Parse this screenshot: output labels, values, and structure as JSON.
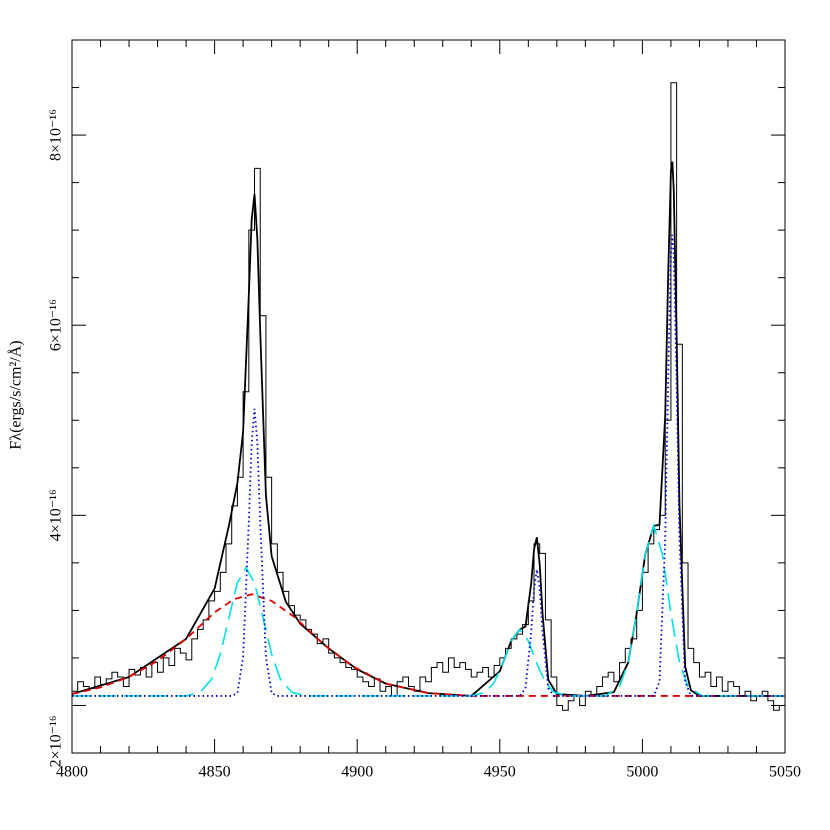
{
  "chart_data": {
    "type": "line",
    "ylabel": "Fλ(ergs/s/cm²/Å)",
    "xlim": [
      4800,
      5050
    ],
    "xticks": [
      4800,
      4850,
      4900,
      4950,
      5000,
      5050
    ],
    "xminorticks": [
      4810,
      4820,
      4830,
      4840,
      4860,
      4870,
      4880,
      4890,
      4910,
      4920,
      4930,
      4940,
      4960,
      4970,
      4980,
      4990,
      5010,
      5020,
      5030,
      5040
    ],
    "ylim": [
      1.5e-16,
      9e-16
    ],
    "yticks": [
      {
        "value": 2e-16,
        "label": "2×10⁻¹⁶"
      },
      {
        "value": 4e-16,
        "label": "4×10⁻¹⁶"
      },
      {
        "value": 6e-16,
        "label": "6×10⁻¹⁶"
      },
      {
        "value": 8e-16,
        "label": "8×10⁻¹⁶"
      }
    ],
    "yminorticks": [
      2.5e-16,
      3e-16,
      3.5e-16,
      4.5e-16,
      5e-16,
      5.5e-16,
      6.5e-16,
      7e-16,
      7.5e-16,
      8.5e-16
    ],
    "series": [
      {
        "color": "#000000",
        "dash": "solid",
        "width": 1,
        "step": true,
        "bins": [
          4800,
          4802,
          4804,
          4806,
          4808,
          4810,
          4812,
          4814,
          4816,
          4818,
          4820,
          4822,
          4824,
          4826,
          4828,
          4830,
          4832,
          4834,
          4836,
          4838,
          4840,
          4842,
          4844,
          4846,
          4848,
          4850,
          4852,
          4854,
          4856,
          4858,
          4860,
          4862,
          4864,
          4866,
          4868,
          4870,
          4872,
          4874,
          4876,
          4878,
          4880,
          4882,
          4884,
          4886,
          4888,
          4890,
          4892,
          4894,
          4896,
          4898,
          4900,
          4902,
          4904,
          4906,
          4908,
          4910,
          4912,
          4914,
          4916,
          4918,
          4920,
          4922,
          4924,
          4926,
          4928,
          4930,
          4932,
          4934,
          4936,
          4938,
          4940,
          4942,
          4944,
          4946,
          4948,
          4950,
          4952,
          4954,
          4956,
          4958,
          4960,
          4962,
          4964,
          4966,
          4968,
          4970,
          4972,
          4974,
          4976,
          4978,
          4980,
          4982,
          4984,
          4986,
          4988,
          4990,
          4992,
          4994,
          4996,
          4998,
          5000,
          5002,
          5004,
          5006,
          5008,
          5010,
          5012,
          5014,
          5016,
          5018,
          5020,
          5022,
          5024,
          5026,
          5028,
          5030,
          5032,
          5034,
          5036,
          5038,
          5040,
          5042,
          5044,
          5046,
          5048,
          5050
        ],
        "values": [
          2.15e-16,
          2.25e-16,
          2.2e-16,
          2.18e-16,
          2.3e-16,
          2.22e-16,
          2.28e-16,
          2.35e-16,
          2.3e-16,
          2.2e-16,
          2.38e-16,
          2.32e-16,
          2.4e-16,
          2.3e-16,
          2.45e-16,
          2.35e-16,
          2.5e-16,
          2.42e-16,
          2.6e-16,
          2.55e-16,
          2.48e-16,
          2.7e-16,
          2.8e-16,
          2.9e-16,
          3.1e-16,
          3.2e-16,
          3.4e-16,
          3.7e-16,
          4.1e-16,
          4.4e-16,
          5.3e-16,
          7e-16,
          7.65e-16,
          6.1e-16,
          4.4e-16,
          3.7e-16,
          3.4e-16,
          3.2e-16,
          3.05e-16,
          2.95e-16,
          2.9e-16,
          2.8e-16,
          2.75e-16,
          2.65e-16,
          2.7e-16,
          2.55e-16,
          2.5e-16,
          2.45e-16,
          2.4e-16,
          2.38e-16,
          2.3e-16,
          2.25e-16,
          2.2e-16,
          2.28e-16,
          2.15e-16,
          2.2e-16,
          2.1e-16,
          2.25e-16,
          2.3e-16,
          2.2e-16,
          2.15e-16,
          2.3e-16,
          2.25e-16,
          2.4e-16,
          2.45e-16,
          2.35e-16,
          2.5e-16,
          2.4e-16,
          2.45e-16,
          2.38e-16,
          2.3e-16,
          2.35e-16,
          2.4e-16,
          2.3e-16,
          2.42e-16,
          2.5e-16,
          2.6e-16,
          2.7e-16,
          2.75e-16,
          2.85e-16,
          3.1e-16,
          3.7e-16,
          3.6e-16,
          2.9e-16,
          2.3e-16,
          2e-16,
          1.95e-16,
          2.05e-16,
          2.1e-16,
          2e-16,
          2.15e-16,
          2.1e-16,
          2.2e-16,
          2.3e-16,
          2.35e-16,
          2.25e-16,
          2.45e-16,
          2.6e-16,
          2.7e-16,
          3e-16,
          3.4e-16,
          3.7e-16,
          3.85e-16,
          4e-16,
          5e-16,
          8.55e-16,
          5.8e-16,
          3.5e-16,
          2.6e-16,
          2.45e-16,
          2.3e-16,
          2.35e-16,
          2.2e-16,
          2.3e-16,
          2.15e-16,
          2.25e-16,
          2.2e-16,
          2.1e-16,
          2.15e-16,
          2.05e-16,
          2.1e-16,
          2.15e-16,
          2.05e-16,
          1.95e-16,
          2e-16
        ]
      },
      {
        "color": "#000000",
        "dash": "solid",
        "width": 1.8,
        "x": [
          4800,
          4820,
          4840,
          4850,
          4855,
          4858,
          4860,
          4862,
          4863,
          4864,
          4865,
          4866,
          4868,
          4870,
          4875,
          4880,
          4890,
          4900,
          4910,
          4925,
          4940,
          4950,
          4954,
          4957,
          4959,
          4961,
          4962,
          4963,
          4964,
          4965,
          4967,
          4970,
          4980,
          4990,
          4995,
          4998,
          5001,
          5004,
          5006,
          5008,
          5009,
          5010,
          5010.5,
          5011,
          5012,
          5013,
          5015,
          5017,
          5020,
          5050
        ],
        "values": [
          2.12e-16,
          2.3e-16,
          2.7e-16,
          3.23e-16,
          3.89e-16,
          4.34e-16,
          4.88e-16,
          6.32e-16,
          7.11e-16,
          7.38e-16,
          6.9e-16,
          5.93e-16,
          4.21e-16,
          3.57e-16,
          3.09e-16,
          2.86e-16,
          2.6e-16,
          2.38e-16,
          2.23e-16,
          2.13e-16,
          2.1e-16,
          2.36e-16,
          2.68e-16,
          2.8e-16,
          2.83e-16,
          3.28e-16,
          3.64e-16,
          3.77e-16,
          3.48e-16,
          2.96e-16,
          2.27e-16,
          2.12e-16,
          2.1e-16,
          2.14e-16,
          2.45e-16,
          2.97e-16,
          3.59e-16,
          3.89e-16,
          3.9e-16,
          5.05e-16,
          6.48e-16,
          7.62e-16,
          7.72e-16,
          7.42e-16,
          5.89e-16,
          4.1e-16,
          2.41e-16,
          2.16e-16,
          2.1e-16,
          2.1e-16
        ]
      },
      {
        "color": "#e00000",
        "dash": "dashed",
        "width": 1.8,
        "x": [
          4800,
          4810,
          4820,
          4830,
          4840,
          4850,
          4857,
          4863,
          4870,
          4878,
          4888,
          4898,
          4910,
          4925,
          4940,
          5050
        ],
        "values": [
          2.12e-16,
          2.19e-16,
          2.3e-16,
          2.47e-16,
          2.7e-16,
          2.98e-16,
          3.12e-16,
          3.17e-16,
          3.1e-16,
          2.93e-16,
          2.65e-16,
          2.42e-16,
          2.23e-16,
          2.13e-16,
          2.1e-16,
          2.1e-16
        ]
      },
      {
        "color": "#00e0e8",
        "dash": "longdash",
        "width": 1.6,
        "x": [
          4800,
          4840,
          4845,
          4849,
          4852,
          4855,
          4858,
          4861,
          4864,
          4867,
          4870,
          4873,
          4877,
          4882,
          4940,
          4945,
          4948,
          4951,
          4954,
          4957,
          4960,
          4963,
          4966,
          4969,
          4974,
          4987,
          4992,
          4995,
          4998,
          5001,
          5004,
          5007,
          5010,
          5013,
          5016,
          5021,
          5050
        ],
        "values": [
          2.1e-16,
          2.1e-16,
          2.14e-16,
          2.28e-16,
          2.54e-16,
          2.92e-16,
          3.29e-16,
          3.45e-16,
          3.29e-16,
          2.92e-16,
          2.54e-16,
          2.28e-16,
          2.14e-16,
          2.1e-16,
          2.1e-16,
          2.14e-16,
          2.24e-16,
          2.44e-16,
          2.68e-16,
          2.8e-16,
          2.68e-16,
          2.44e-16,
          2.24e-16,
          2.14e-16,
          2.1e-16,
          2.1e-16,
          2.2e-16,
          2.45e-16,
          2.97e-16,
          3.59e-16,
          3.89e-16,
          3.59e-16,
          2.97e-16,
          2.45e-16,
          2.2e-16,
          2.1e-16,
          2.1e-16
        ]
      },
      {
        "color": "#0000cc",
        "dash": "dotted",
        "width": 1.8,
        "x": [
          4800,
          4856,
          4858,
          4860,
          4862,
          4863,
          4864,
          4865,
          4866,
          4868,
          4870,
          4872,
          4957,
          4959,
          4961,
          4962,
          4963,
          4964,
          4965,
          4967,
          4969,
          5004,
          5006,
          5008,
          5009,
          5010,
          5010.5,
          5011,
          5012,
          5013,
          5015,
          5017,
          5050
        ],
        "values": [
          2.1e-16,
          2.1e-16,
          2.13e-16,
          2.51e-16,
          3.93e-16,
          4.76e-16,
          5.12e-16,
          4.76e-16,
          3.93e-16,
          2.51e-16,
          2.13e-16,
          2.1e-16,
          2.1e-16,
          2.18e-16,
          2.77e-16,
          3.22e-16,
          3.43e-16,
          3.22e-16,
          2.77e-16,
          2.18e-16,
          2.1e-16,
          2.1e-16,
          2.25e-16,
          3.75e-16,
          5.39e-16,
          6.75e-16,
          6.95e-16,
          6.75e-16,
          5.39e-16,
          3.75e-16,
          2.25e-16,
          2.1e-16,
          2.1e-16
        ]
      }
    ]
  }
}
